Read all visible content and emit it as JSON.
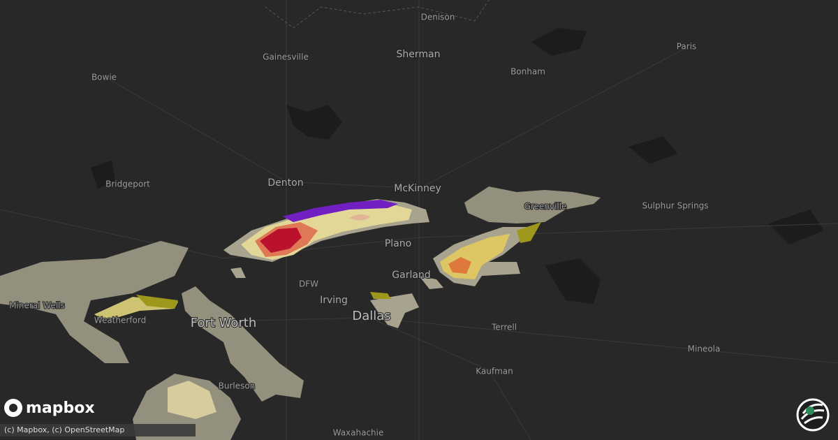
{
  "map": {
    "cities": [
      "Denison",
      "Sherman",
      "Gainesville",
      "Bowie",
      "Bonham",
      "Paris",
      "Denton",
      "McKinney",
      "Bridgeport",
      "Greenville",
      "Sulphur Springs",
      "Plano",
      "Garland",
      "DFW",
      "Irving",
      "Dallas",
      "Fort Worth",
      "Mineral Wells",
      "Weatherford",
      "Terrell",
      "Mineola",
      "Kaufman",
      "Burleson",
      "Waxahachie"
    ],
    "logo": "mapbox",
    "attribution": "(c) Mapbox, (c) OpenStreetMap"
  }
}
